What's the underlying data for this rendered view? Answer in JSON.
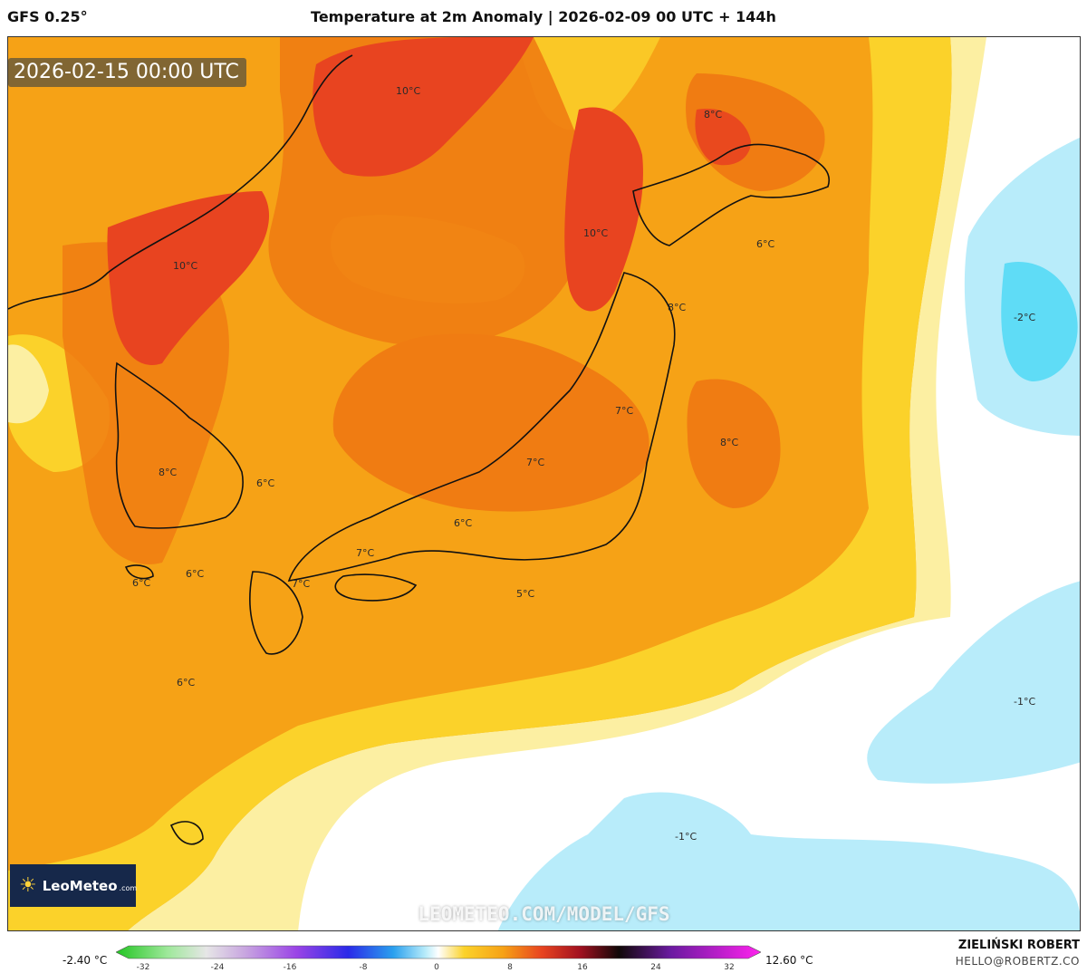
{
  "header": {
    "model": "GFS 0.25°",
    "title": "Temperature at 2m Anomaly | 2026-02-09 00 UTC + 144h"
  },
  "map": {
    "valid_time": "2026-02-15 00:00 UTC",
    "watermark": "LEOMETEO.COM/MODEL/GFS",
    "logo": {
      "name": "LeoMeteo",
      "tld": ".com"
    },
    "labels": [
      {
        "text": "10°C",
        "name": "label-manchuria"
      },
      {
        "text": "10°C",
        "name": "label-north-korea"
      },
      {
        "text": "10°C",
        "name": "label-sea-of-japan-north"
      },
      {
        "text": "8°C",
        "name": "label-hokkaido"
      },
      {
        "text": "6°C",
        "name": "label-pacific-northeast"
      },
      {
        "text": "8°C",
        "name": "label-tohoku"
      },
      {
        "text": "-2°C",
        "name": "label-pacific-cold-core"
      },
      {
        "text": "7°C",
        "name": "label-kanto-north"
      },
      {
        "text": "8°C",
        "name": "label-pacific-east-honshu"
      },
      {
        "text": "7°C",
        "name": "label-chubu"
      },
      {
        "text": "8°C",
        "name": "label-south-korea"
      },
      {
        "text": "6°C",
        "name": "label-korea-strait"
      },
      {
        "text": "6°C",
        "name": "label-kinki"
      },
      {
        "text": "7°C",
        "name": "label-chugoku"
      },
      {
        "text": "7°C",
        "name": "label-kyushu"
      },
      {
        "text": "6°C",
        "name": "label-east-china-sea-north"
      },
      {
        "text": "6°C",
        "name": "label-jeju"
      },
      {
        "text": "5°C",
        "name": "label-shikoku-south"
      },
      {
        "text": "6°C",
        "name": "label-east-china-sea-south"
      },
      {
        "text": "-1°C",
        "name": "label-pacific-east"
      },
      {
        "text": "-1°C",
        "name": "label-pacific-south"
      }
    ]
  },
  "colorbar": {
    "min_label": "-2.40 °C",
    "max_label": "12.60 °C",
    "ticks": [
      "-32",
      "-24",
      "-16",
      "-8",
      "0",
      "8",
      "16",
      "24",
      "32"
    ]
  },
  "credits": {
    "author": "ZIELIŃSKI ROBERT",
    "email": "HELLO@ROBERTZ.CO"
  },
  "colors": {
    "warm_orange": "#f6a216",
    "dark_orange": "#f07c12",
    "red": "#e84420",
    "yellow": "#fbd22a",
    "pale_yellow": "#fcefa2",
    "white": "#ffffff",
    "light_blue": "#b8ecfa",
    "cyan": "#5fdcf6"
  }
}
